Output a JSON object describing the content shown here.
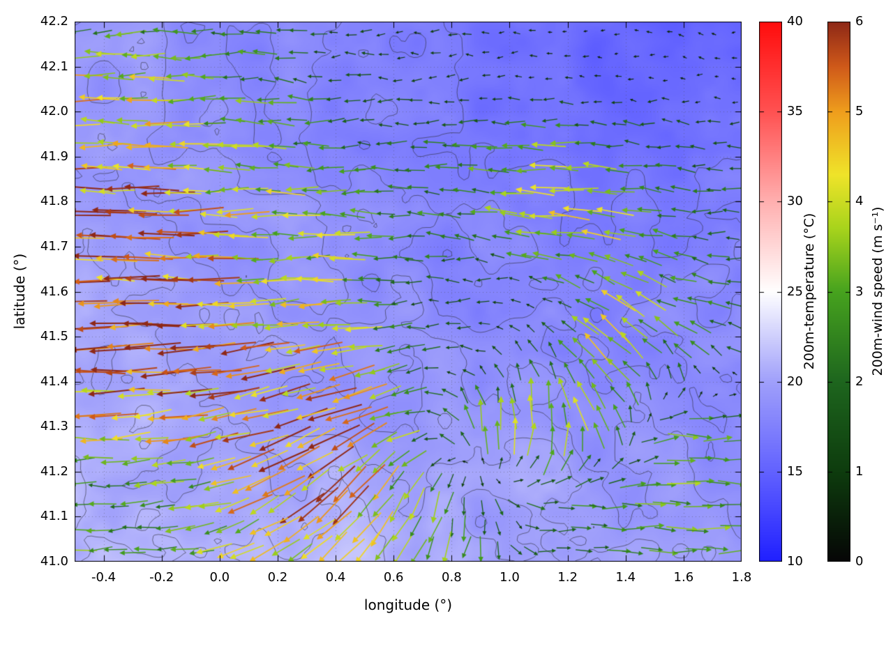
{
  "chart_data": {
    "type": "heatmap",
    "overlay": "quiver",
    "title": "",
    "xlabel": "longitude (°)",
    "ylabel": "latitude (°)",
    "xlim": [
      -0.5,
      1.8
    ],
    "ylim": [
      41.0,
      42.2
    ],
    "xticks": [
      -0.4,
      -0.2,
      0.0,
      0.2,
      0.4,
      0.6,
      0.8,
      1.0,
      1.2,
      1.4,
      1.6,
      1.8
    ],
    "yticks": [
      41.0,
      41.1,
      41.2,
      41.3,
      41.4,
      41.5,
      41.6,
      41.7,
      41.8,
      41.9,
      42.0,
      42.1,
      42.2
    ],
    "grid": "dotted",
    "contour_levels": [
      17,
      18,
      19,
      20,
      21
    ],
    "contour_color": "#33333b",
    "temperature_field": {
      "label": "200m-temperature (°C)",
      "units": "°C",
      "range": [
        10,
        40
      ],
      "colorbar_ticks": [
        10,
        15,
        20,
        25,
        30,
        35,
        40
      ],
      "colormap": [
        [
          10,
          "#2020ff"
        ],
        [
          15,
          "#6262ff"
        ],
        [
          20,
          "#a0a0fb"
        ],
        [
          25,
          "#ffffff"
        ],
        [
          30,
          "#ffb0b0"
        ],
        [
          35,
          "#ff5252"
        ],
        [
          40,
          "#ff0d0d"
        ]
      ],
      "lon": [
        -0.5,
        -0.27,
        -0.04,
        0.19,
        0.42,
        0.65,
        0.88,
        1.11,
        1.34,
        1.57,
        1.8
      ],
      "lat": [
        41.0,
        41.15,
        41.3,
        41.45,
        41.6,
        41.75,
        41.9,
        42.05,
        42.2
      ],
      "values": [
        [
          21,
          21,
          20.5,
          21,
          22,
          21,
          20,
          20.5,
          19.5,
          19.5,
          19
        ],
        [
          21,
          20.5,
          20.5,
          20,
          21,
          20,
          19.5,
          20,
          19,
          19.5,
          19
        ],
        [
          20.5,
          20.5,
          20,
          20,
          19.5,
          19.5,
          19,
          19.5,
          18.5,
          19,
          18.5
        ],
        [
          20.5,
          20,
          20,
          19.5,
          19,
          19,
          18.5,
          18.5,
          18,
          18.5,
          18.5
        ],
        [
          20,
          20,
          19.5,
          19,
          19,
          18.5,
          18,
          18,
          17.5,
          18,
          18
        ],
        [
          20,
          19.5,
          19,
          19,
          18.5,
          18,
          17.5,
          17.5,
          17,
          17.5,
          17.5
        ],
        [
          19.5,
          19,
          19,
          18.5,
          18,
          17.5,
          17,
          17,
          16.5,
          16.5,
          17
        ],
        [
          19,
          19,
          18.5,
          18,
          17.5,
          17,
          16.5,
          16,
          15.5,
          15.5,
          16
        ],
        [
          19,
          19,
          18.5,
          18,
          17.5,
          17,
          16.5,
          16,
          15.5,
          15,
          15.5
        ]
      ]
    },
    "wind_field": {
      "label": "200m-wind speed (m s⁻¹)",
      "units": "m s⁻¹",
      "range": [
        0,
        6
      ],
      "colorbar_ticks": [
        0,
        1,
        2,
        3,
        4,
        5,
        6
      ],
      "colormap": [
        [
          0,
          "#060606"
        ],
        [
          1,
          "#0e3c0e"
        ],
        [
          2,
          "#1e661e"
        ],
        [
          3,
          "#47a31f"
        ],
        [
          3.7,
          "#a8d41c"
        ],
        [
          4.3,
          "#f0e42a"
        ],
        [
          5,
          "#ef9e1d"
        ],
        [
          5.5,
          "#d05a1a"
        ],
        [
          6,
          "#8e2817"
        ]
      ],
      "lon": [
        -0.5,
        -0.27,
        -0.04,
        0.19,
        0.42,
        0.65,
        0.88,
        1.11,
        1.34,
        1.57,
        1.8
      ],
      "lat": [
        41.0,
        41.15,
        41.3,
        41.45,
        41.6,
        41.75,
        41.9,
        42.05,
        42.2
      ],
      "uv_units": "m/s [eastward, northward]",
      "uv": [
        [
          [
            -3,
            0
          ],
          [
            -3,
            -0.2
          ],
          [
            -3,
            -0.5
          ],
          [
            -4,
            -2
          ],
          [
            -3,
            -3
          ],
          [
            -1.5,
            -3
          ],
          [
            -0.5,
            -2.5
          ],
          [
            1.5,
            -0.3
          ],
          [
            2,
            0
          ],
          [
            2.5,
            0
          ],
          [
            2.8,
            0
          ]
        ],
        [
          [
            -2.5,
            0
          ],
          [
            -2.5,
            -0.3
          ],
          [
            -3,
            -0.5
          ],
          [
            -4.5,
            -2.5
          ],
          [
            -3.5,
            -3.5
          ],
          [
            -1.5,
            -3
          ],
          [
            0,
            -2.5
          ],
          [
            2,
            0
          ],
          [
            2.5,
            0
          ],
          [
            3,
            0
          ],
          [
            3,
            0
          ]
        ],
        [
          [
            -4,
            0
          ],
          [
            -4,
            -0.3
          ],
          [
            -4.5,
            -1
          ],
          [
            -5,
            -1.5
          ],
          [
            -4.5,
            -2
          ],
          [
            -3,
            -1
          ],
          [
            -0.5,
            3.5
          ],
          [
            0.5,
            4.5
          ],
          [
            -1.5,
            2.5
          ],
          [
            2.8,
            0
          ],
          [
            2.5,
            0
          ]
        ],
        [
          [
            -6,
            0
          ],
          [
            -6,
            -0.3
          ],
          [
            -5.5,
            -0.5
          ],
          [
            -5,
            -1
          ],
          [
            -4.5,
            -1
          ],
          [
            -2,
            -0.3
          ],
          [
            -1,
            0.3
          ],
          [
            -0.8,
            1.5
          ],
          [
            -3,
            3
          ],
          [
            -1.5,
            2
          ],
          [
            -1.5,
            0.5
          ]
        ],
        [
          [
            -6,
            0
          ],
          [
            -5.5,
            0
          ],
          [
            -5,
            0
          ],
          [
            -3.5,
            -0.3
          ],
          [
            -3.5,
            0
          ],
          [
            -1.5,
            0
          ],
          [
            -1.2,
            0
          ],
          [
            -1,
            0.5
          ],
          [
            -3.5,
            2
          ],
          [
            -2.5,
            1
          ],
          [
            -2,
            0
          ]
        ],
        [
          [
            -5.5,
            0
          ],
          [
            -5.5,
            0
          ],
          [
            -4.5,
            0
          ],
          [
            -4,
            0
          ],
          [
            -3.5,
            0
          ],
          [
            -2.5,
            0
          ],
          [
            -2.5,
            0.3
          ],
          [
            -4,
            0.3
          ],
          [
            -3.5,
            0.5
          ],
          [
            -2,
            0.3
          ],
          [
            -2,
            0
          ]
        ],
        [
          [
            -5,
            0
          ],
          [
            -4.5,
            0
          ],
          [
            -3.5,
            0
          ],
          [
            -3,
            0
          ],
          [
            -2.2,
            0
          ],
          [
            -2,
            0
          ],
          [
            -2.5,
            0.2
          ],
          [
            -3.5,
            0.2
          ],
          [
            -3,
            0.3
          ],
          [
            -2,
            0.2
          ],
          [
            -1.8,
            0
          ]
        ],
        [
          [
            -4.5,
            0
          ],
          [
            -4,
            0
          ],
          [
            -3,
            0
          ],
          [
            -2.5,
            0.3
          ],
          [
            -1.5,
            0
          ],
          [
            -1.2,
            0
          ],
          [
            -1,
            0
          ],
          [
            -0.8,
            0
          ],
          [
            -0.6,
            0
          ],
          [
            -0.5,
            0
          ],
          [
            -0.5,
            0
          ]
        ],
        [
          [
            -2.5,
            0
          ],
          [
            -2.5,
            0
          ],
          [
            -2,
            0
          ],
          [
            -2.5,
            -0.3
          ],
          [
            -1,
            0
          ],
          [
            -1,
            0
          ],
          [
            -0.8,
            0
          ],
          [
            -0.6,
            0
          ],
          [
            -0.5,
            0
          ],
          [
            -0.8,
            0.2
          ],
          [
            -0.5,
            0
          ]
        ]
      ]
    }
  }
}
